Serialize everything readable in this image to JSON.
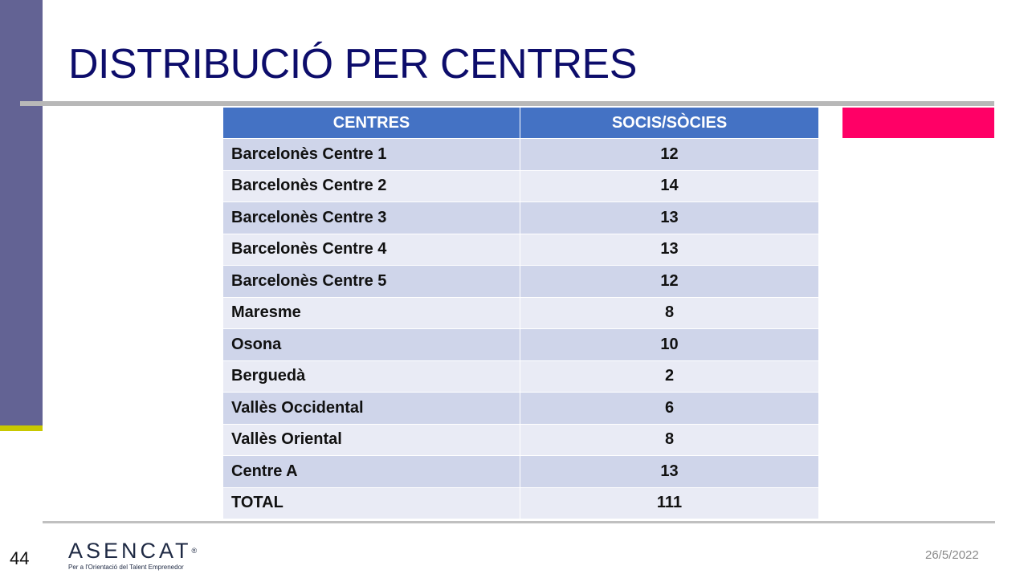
{
  "slide": {
    "title": "DISTRIBUCIÓ PER CENTRES",
    "page_number": "44",
    "date": "26/5/2022"
  },
  "logo": {
    "wordmark": "ASENCAT",
    "registered": "®",
    "tagline": "Per a l'Orientació del Talent Emprenedor"
  },
  "table": {
    "headers": [
      "CENTRES",
      "SOCIS/SÒCIES"
    ],
    "rows": [
      {
        "centre": "Barcelonès Centre 1",
        "count": "12"
      },
      {
        "centre": "Barcelonès Centre 2",
        "count": "14"
      },
      {
        "centre": "Barcelonès Centre 3",
        "count": "13"
      },
      {
        "centre": "Barcelonès Centre 4",
        "count": "13"
      },
      {
        "centre": "Barcelonès Centre 5",
        "count": "12"
      },
      {
        "centre": "Maresme",
        "count": "8"
      },
      {
        "centre": "Osona",
        "count": "10"
      },
      {
        "centre": "Berguedà",
        "count": "2"
      },
      {
        "centre": "Vallès Occidental",
        "count": "6"
      },
      {
        "centre": "Vallès Oriental",
        "count": "8"
      },
      {
        "centre": "Centre A",
        "count": "13"
      },
      {
        "centre": "TOTAL",
        "count": "111"
      }
    ]
  },
  "colors": {
    "title": "#0d0d6b",
    "side_bar": "#636394",
    "side_accent": "#c8c800",
    "header_bg": "#4472c4",
    "row_dark": "#cfd5ea",
    "row_light": "#e9ebf5",
    "accent_pink": "#ff0066"
  }
}
